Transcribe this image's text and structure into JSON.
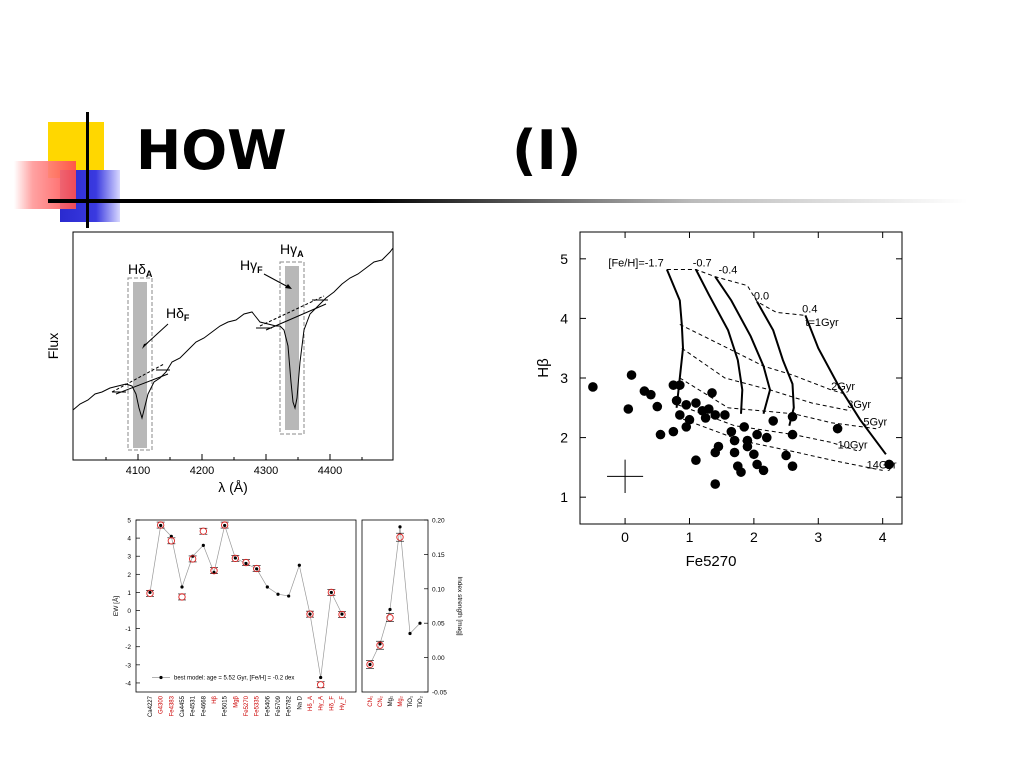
{
  "slide": {
    "title": "HOW",
    "title_suffix": "(I)",
    "colors": {
      "yellow": "#ffd700",
      "red": "#ff4d4d",
      "blue": "#2a2acf",
      "rule": "#000000"
    }
  },
  "spectrum_panel": {
    "ylabel": "Flux",
    "xlabel": "λ (Å)",
    "xticks": [
      "4100",
      "4200",
      "4300",
      "4400"
    ],
    "labels": {
      "hd_a_main": "Hδ",
      "hd_a_sub": "A",
      "hd_f_main": "Hδ",
      "hd_f_sub": "F",
      "hg_a_main": "Hγ",
      "hg_a_sub": "A",
      "hg_f_main": "Hγ",
      "hg_f_sub": "F"
    }
  },
  "chart_data": [
    {
      "type": "scatter",
      "xlabel": "Fe5270",
      "ylabel": "Hβ",
      "xlim": [
        -0.7,
        4.3
      ],
      "ylim": [
        0.55,
        5.45
      ],
      "xticks": [
        "0",
        "1",
        "2",
        "3",
        "4"
      ],
      "yticks": [
        "1",
        "2",
        "3",
        "4",
        "5"
      ],
      "metallicity_labels": [
        "[Fe/H]=-1.7",
        "-0.7",
        "-0.4",
        "0.0",
        "0.4"
      ],
      "age_labels": [
        "t=1Gyr",
        "2Gyr",
        "3Gyr",
        "5Gyr",
        "10Gyr",
        "14Gyr"
      ],
      "points": [
        [
          -0.5,
          2.85
        ],
        [
          0.1,
          3.05
        ],
        [
          0.05,
          2.48
        ],
        [
          0.3,
          2.78
        ],
        [
          0.4,
          2.72
        ],
        [
          0.5,
          2.52
        ],
        [
          0.75,
          2.88
        ],
        [
          0.85,
          2.88
        ],
        [
          0.8,
          2.62
        ],
        [
          0.95,
          2.55
        ],
        [
          0.85,
          2.38
        ],
        [
          1.1,
          2.58
        ],
        [
          1.2,
          2.45
        ],
        [
          1.3,
          2.48
        ],
        [
          1.4,
          2.38
        ],
        [
          1.0,
          2.3
        ],
        [
          1.25,
          2.33
        ],
        [
          1.55,
          2.38
        ],
        [
          1.35,
          2.75
        ],
        [
          0.55,
          2.05
        ],
        [
          0.75,
          2.1
        ],
        [
          0.95,
          2.18
        ],
        [
          1.45,
          1.85
        ],
        [
          1.65,
          2.1
        ],
        [
          1.85,
          2.18
        ],
        [
          1.7,
          1.95
        ],
        [
          1.9,
          1.95
        ],
        [
          2.05,
          2.05
        ],
        [
          2.2,
          2.0
        ],
        [
          2.3,
          2.28
        ],
        [
          2.6,
          2.35
        ],
        [
          2.6,
          2.05
        ],
        [
          1.1,
          1.62
        ],
        [
          1.4,
          1.75
        ],
        [
          1.7,
          1.75
        ],
        [
          1.9,
          1.85
        ],
        [
          2.0,
          1.72
        ],
        [
          2.05,
          1.55
        ],
        [
          1.75,
          1.52
        ],
        [
          1.8,
          1.42
        ],
        [
          2.15,
          1.45
        ],
        [
          2.5,
          1.7
        ],
        [
          2.6,
          1.52
        ],
        [
          3.3,
          2.15
        ],
        [
          4.1,
          1.55
        ],
        [
          1.4,
          1.22
        ]
      ],
      "error_bar": {
        "x": 0.0,
        "y": 1.35,
        "xerr": 0.28,
        "yerr": 0.28
      },
      "iso_metallicity": [
        {
          "label": "[Fe/H]=-1.7",
          "points": [
            [
              0.65,
              4.82
            ],
            [
              0.85,
              4.3
            ],
            [
              0.88,
              3.9
            ],
            [
              0.9,
              3.5
            ],
            [
              0.85,
              3.0
            ],
            [
              0.8,
              2.5
            ]
          ]
        },
        {
          "label": "-0.7",
          "points": [
            [
              1.1,
              4.82
            ],
            [
              1.3,
              4.4
            ],
            [
              1.6,
              3.8
            ],
            [
              1.75,
              3.3
            ],
            [
              1.82,
              2.8
            ],
            [
              1.8,
              2.4
            ]
          ]
        },
        {
          "label": "-0.4",
          "points": [
            [
              1.4,
              4.7
            ],
            [
              1.65,
              4.3
            ],
            [
              1.95,
              3.7
            ],
            [
              2.15,
              3.2
            ],
            [
              2.25,
              2.8
            ],
            [
              2.15,
              2.4
            ]
          ]
        },
        {
          "label": "0.0",
          "points": [
            [
              2.05,
              4.28
            ],
            [
              2.3,
              3.8
            ],
            [
              2.45,
              3.3
            ],
            [
              2.6,
              2.9
            ],
            [
              2.62,
              2.5
            ],
            [
              2.55,
              2.2
            ]
          ]
        },
        {
          "label": "0.4",
          "points": [
            [
              2.8,
              4.05
            ],
            [
              3.0,
              3.5
            ],
            [
              3.3,
              2.9
            ],
            [
              3.65,
              2.3
            ],
            [
              4.05,
              1.72
            ]
          ]
        }
      ],
      "iso_age": [
        {
          "label": "t=1Gyr",
          "points": [
            [
              0.65,
              4.82
            ],
            [
              1.1,
              4.82
            ],
            [
              1.4,
              4.7
            ],
            [
              1.9,
              4.55
            ],
            [
              2.05,
              4.28
            ],
            [
              2.35,
              4.1
            ],
            [
              2.8,
              4.05
            ]
          ]
        },
        {
          "label": "2Gyr",
          "points": [
            [
              0.85,
              3.9
            ],
            [
              1.5,
              3.55
            ],
            [
              2.15,
              3.2
            ],
            [
              2.6,
              3.05
            ],
            [
              3.2,
              2.8
            ],
            [
              3.45,
              2.72
            ]
          ]
        },
        {
          "label": "3Gyr",
          "points": [
            [
              0.88,
              3.5
            ],
            [
              1.55,
              3.0
            ],
            [
              2.25,
              2.8
            ],
            [
              2.9,
              2.58
            ],
            [
              3.5,
              2.45
            ]
          ]
        },
        {
          "label": "5Gyr",
          "points": [
            [
              0.85,
              3.0
            ],
            [
              1.6,
              2.5
            ],
            [
              2.62,
              2.4
            ],
            [
              3.2,
              2.25
            ],
            [
              3.9,
              2.15
            ]
          ]
        },
        {
          "label": "10Gyr",
          "points": [
            [
              0.82,
              2.55
            ],
            [
              1.7,
              2.2
            ],
            [
              2.62,
              2.05
            ],
            [
              3.2,
              1.92
            ],
            [
              3.6,
              1.78
            ]
          ]
        },
        {
          "label": "14Gyr",
          "points": [
            [
              0.8,
              2.35
            ],
            [
              1.8,
              1.95
            ],
            [
              2.55,
              1.78
            ],
            [
              3.3,
              1.6
            ],
            [
              4.0,
              1.45
            ]
          ]
        }
      ]
    },
    {
      "type": "line",
      "ylabel": "EW [Å]",
      "y2label": "Index strength [mag]",
      "ylim": [
        -4.5,
        5
      ],
      "y2lim": [
        -0.05,
        0.2
      ],
      "yticks": [
        "5",
        "4",
        "3",
        "2",
        "1",
        "0",
        "-1",
        "-2",
        "-3",
        "-4"
      ],
      "y2ticks": [
        "0.20",
        "0.15",
        "0.10",
        "0.05",
        "0.00",
        "-0.05"
      ],
      "legend": "best model: age = 5.52 Gyr, [Fe/H] = -0.2 dex",
      "categories": [
        "Ca4227",
        "G4300",
        "Fe4383",
        "Ca4455",
        "Fe4531",
        "Fe4668",
        "Hβ",
        "Fe5015",
        "Mgβ",
        "Fe5270",
        "Fe5335",
        "Fe5406",
        "Fe5709",
        "Fe5782",
        "Na D",
        "Hδ_A",
        "Hγ_A",
        "Hδ_F",
        "Hγ_F"
      ],
      "red_categories": [
        "G4300",
        "Fe4383",
        "Hβ",
        "Mgβ",
        "Fe5270",
        "Fe5335",
        "Hδ_A",
        "Hγ_A",
        "Hδ_F",
        "Hγ_F"
      ],
      "model": [
        1.0,
        4.7,
        4.1,
        1.3,
        3.0,
        3.6,
        2.1,
        4.7,
        2.9,
        2.6,
        2.3,
        1.3,
        0.9,
        0.8,
        2.5,
        -0.2,
        -3.7,
        1.0,
        -0.2
      ],
      "observed": [
        0.95,
        4.72,
        3.85,
        0.75,
        2.85,
        4.38,
        2.2,
        4.72,
        2.88,
        2.65,
        2.32,
        null,
        null,
        null,
        null,
        -0.2,
        -4.1,
        1.0,
        -0.22
      ],
      "categories_right": [
        "CN₁",
        "CN₂",
        "Mg₁",
        "Mg₂",
        "TiO₁",
        "TiO₂"
      ],
      "red_categories_right": [
        "CN₁",
        "CN₂",
        "Mg₂"
      ],
      "model_right": [
        -0.01,
        0.02,
        0.07,
        0.19,
        0.035,
        0.05
      ],
      "observed_right": [
        -0.01,
        0.018,
        0.058,
        0.175,
        null,
        null
      ]
    }
  ]
}
